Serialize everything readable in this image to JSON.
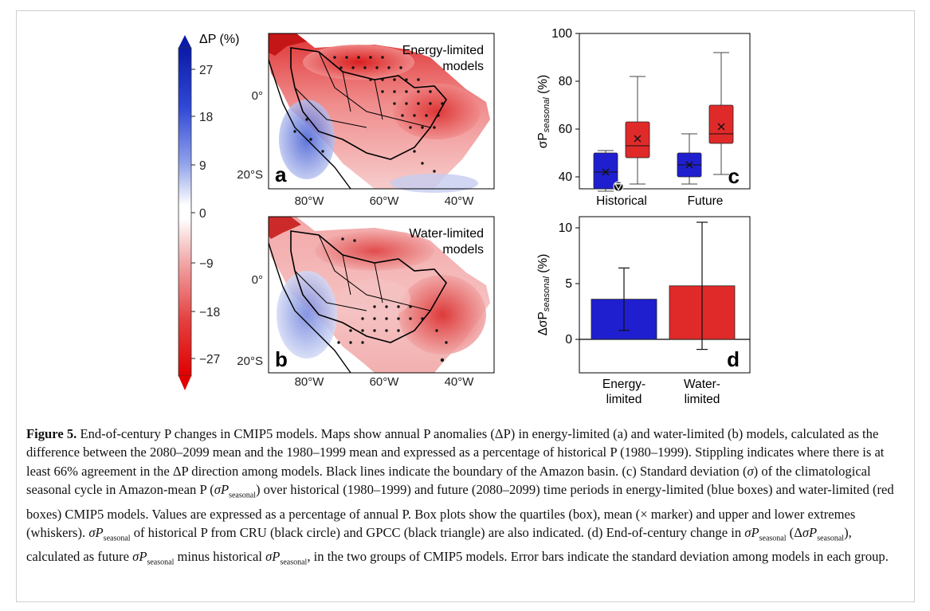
{
  "colorbar": {
    "title": "ΔP (%)",
    "ticks": [
      "27",
      "18",
      "9",
      "0",
      "−9",
      "−18",
      "−27"
    ]
  },
  "map_a": {
    "panel_letter": "a",
    "label_line1": "Energy-limited",
    "label_line2": "models",
    "lat_labels": [
      "0°",
      "20°S"
    ],
    "lon_labels": [
      "80°W",
      "60°W",
      "40°W"
    ]
  },
  "map_b": {
    "panel_letter": "b",
    "label_line1": "Water-limited",
    "label_line2": "models",
    "lat_labels": [
      "0°",
      "20°S"
    ],
    "lon_labels": [
      "80°W",
      "60°W",
      "40°W"
    ]
  },
  "colors": {
    "energy_blue": "#1f1fd0",
    "water_red": "#e02a2a",
    "map_red": "#d92b2b",
    "map_blue": "#2a45c8"
  },
  "chart_data": [
    {
      "type": "box",
      "panel_letter": "c",
      "ylabel_main": "σP",
      "ylabel_sub": "seasonal",
      "ylabel_unit": " (%)",
      "yticks": [
        "40",
        "60",
        "80",
        "100"
      ],
      "ylim": [
        35,
        100
      ],
      "categories": [
        "Historical",
        "Future"
      ],
      "series": [
        {
          "group": "energy-limited",
          "color": "#1f1fd0",
          "boxes": [
            {
              "category": "Historical",
              "whisker_low": 34,
              "q1": 35,
              "median": 42,
              "q3": 50,
              "whisker_high": 51,
              "mean": 42
            },
            {
              "category": "Future",
              "whisker_low": 37,
              "q1": 40,
              "median": 45,
              "q3": 50,
              "whisker_high": 58,
              "mean": 45
            }
          ]
        },
        {
          "group": "water-limited",
          "color": "#e02a2a",
          "boxes": [
            {
              "category": "Historical",
              "whisker_low": 37,
              "q1": 48,
              "median": 53,
              "q3": 63,
              "whisker_high": 82,
              "mean": 56
            },
            {
              "category": "Future",
              "whisker_low": 41,
              "q1": 54,
              "median": 58,
              "q3": 70,
              "whisker_high": 92,
              "mean": 61
            }
          ]
        }
      ],
      "observations": [
        {
          "source": "CRU",
          "marker": "circle",
          "value": 36
        },
        {
          "source": "GPCC",
          "marker": "triangle",
          "value": 36
        }
      ]
    },
    {
      "type": "bar",
      "panel_letter": "d",
      "ylabel_main": "ΔσP",
      "ylabel_sub": "seasonal",
      "ylabel_unit": " (%)",
      "yticks": [
        "0",
        "5",
        "10"
      ],
      "ylim": [
        -3,
        11
      ],
      "categories": [
        [
          "Energy-",
          "limited"
        ],
        [
          "Water-",
          "limited"
        ]
      ],
      "values": [
        3.6,
        4.8
      ],
      "errors": [
        2.8,
        5.7
      ],
      "colors": [
        "#1f1fd0",
        "#e02a2a"
      ]
    }
  ],
  "caption": {
    "label": "Figure 5.",
    "s1": " End-of-century P changes in CMIP5 models. Maps show annual P anomalies (ΔP) in energy-limited (a) and water-limited (b) models, calculated as the difference between the 2080–2099 mean and the 1980–1999 mean and expressed as a percentage of historical P (1980–1999). Stippling indicates where there is at least 66% agreement in the ΔP direction among models. Black lines indicate the boundary of the Amazon basin. (c) Standard deviation (",
    "sigma": "σ",
    "s2": ") of the climatological seasonal cycle in Amazon-mean P (",
    "sigmaP": "σP",
    "seasonal": "seasonal",
    "s3": ") over historical (1980–1999) and future (2080–2099) time periods in energy-limited (blue boxes) and water-limited (red boxes) CMIP5 models. Values are expressed as a percentage of annual P. Box plots show the quartiles (box), mean (× marker) and upper and lower extremes (whiskers). ",
    "s4": " of historical P from CRU (black circle) and GPCC (black triangle) are also indicated. (d) End-of-century change in ",
    "s5": " (Δ",
    "s6": "), calculated as future ",
    "s7": " minus historical ",
    "s8": ", in the two groups of CMIP5 models. Error bars indicate the standard deviation among models in each group."
  }
}
